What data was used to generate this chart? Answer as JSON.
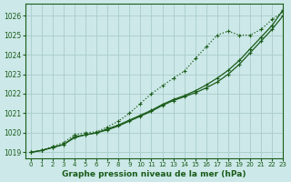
{
  "title": "Graphe pression niveau de la mer (hPa)",
  "bg_color": "#cce8e8",
  "grid_color": "#aacccc",
  "line_color": "#1a5c1a",
  "text_color": "#1a5c1a",
  "ylim": [
    1018.7,
    1026.6
  ],
  "xlim": [
    -0.5,
    23
  ],
  "yticks": [
    1019,
    1020,
    1021,
    1022,
    1023,
    1024,
    1025,
    1026
  ],
  "xticks": [
    0,
    1,
    2,
    3,
    4,
    5,
    6,
    7,
    8,
    9,
    10,
    11,
    12,
    13,
    14,
    15,
    16,
    17,
    18,
    19,
    20,
    21,
    22,
    23
  ],
  "s1_x": [
    0,
    1,
    2,
    3,
    4,
    5,
    6,
    7,
    8,
    9,
    10,
    11,
    12,
    13,
    14,
    15,
    16,
    17,
    18,
    19,
    20,
    21,
    22,
    23
  ],
  "s1_y": [
    1019.0,
    1019.1,
    1019.25,
    1019.4,
    1019.8,
    1019.9,
    1020.0,
    1020.15,
    1020.35,
    1020.6,
    1020.85,
    1021.1,
    1021.4,
    1021.65,
    1021.85,
    1022.05,
    1022.3,
    1022.6,
    1023.0,
    1023.5,
    1024.1,
    1024.7,
    1025.3,
    1026.0
  ],
  "s2_x": [
    0,
    1,
    2,
    3,
    4,
    5,
    6,
    7,
    8,
    9,
    10,
    11,
    12,
    13,
    14,
    15,
    16,
    17,
    18,
    19,
    20,
    21,
    22,
    23
  ],
  "s2_y": [
    1019.0,
    1019.1,
    1019.25,
    1019.4,
    1019.75,
    1019.9,
    1020.0,
    1020.2,
    1020.4,
    1020.65,
    1020.9,
    1021.15,
    1021.45,
    1021.7,
    1021.9,
    1022.15,
    1022.45,
    1022.8,
    1023.2,
    1023.7,
    1024.3,
    1024.9,
    1025.5,
    1026.3
  ],
  "s3_x": [
    0,
    1,
    2,
    3,
    4,
    5,
    6,
    7,
    8,
    9,
    10,
    11,
    12,
    13,
    14,
    15,
    16,
    17,
    18,
    19,
    20,
    21,
    22,
    23
  ],
  "s3_y": [
    1019.0,
    1019.1,
    1019.3,
    1019.5,
    1019.9,
    1020.0,
    1020.05,
    1020.3,
    1020.6,
    1021.0,
    1021.5,
    1022.0,
    1022.4,
    1022.8,
    1023.15,
    1023.8,
    1024.4,
    1025.0,
    1025.2,
    1025.0,
    1025.0,
    1025.3,
    1025.8,
    1026.2
  ],
  "title_fontsize": 6.5,
  "tick_fontsize": 5.5,
  "xtick_fontsize": 5.0
}
